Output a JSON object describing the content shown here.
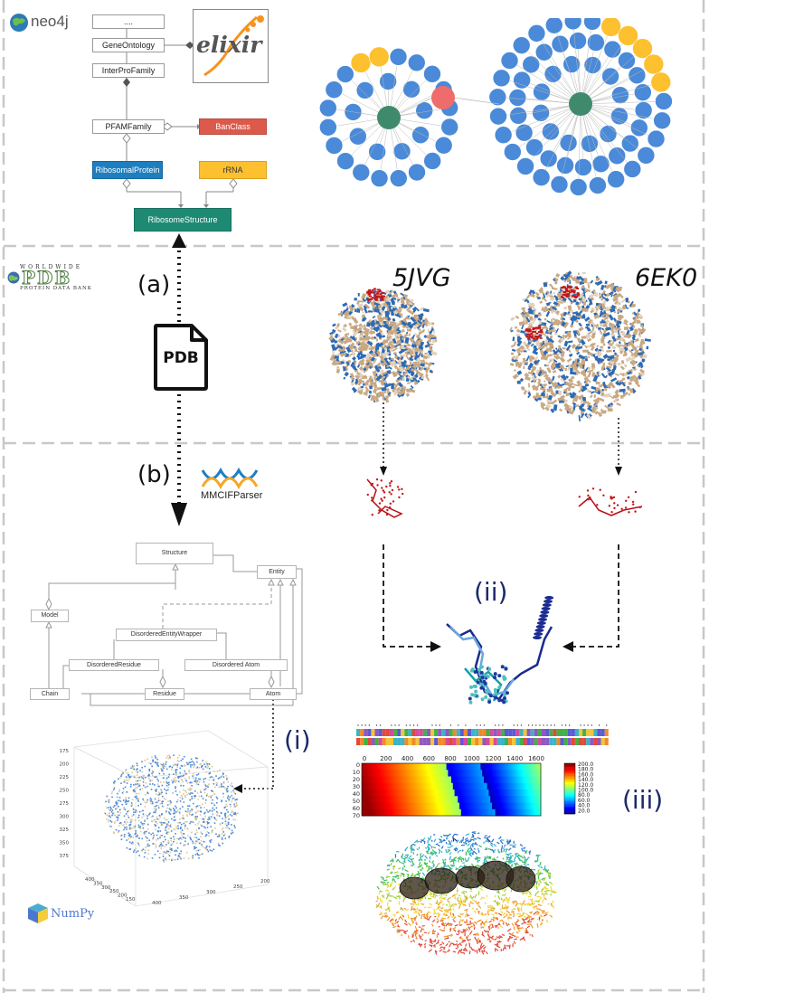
{
  "logos": {
    "neo4j": "neo4j",
    "elixir": "elixir",
    "wwpdb_top": "WORLDWIDE",
    "wwpdb_main": "PDB",
    "wwpdb_bottom": "PROTEIN DATA BANK",
    "mmcif": "MMCIFParser",
    "numpy": "NumPy"
  },
  "schema": {
    "dots": "....",
    "gene_ontology": "GeneOntology",
    "interpro": "InterProFamily",
    "pfam": "PFAMFamily",
    "banclass": "BanClass",
    "ribosomal_protein": "RibosomalProtein",
    "rrna": "rRNA",
    "ribosome_structure": "RibosomeStructure"
  },
  "labels": {
    "a": "(a)",
    "b": "(b)",
    "pdb_file": "PDB",
    "structure_1": "5JVG",
    "structure_2": "6EK0",
    "i": "(i)",
    "ii": "(ii)",
    "iii": "(iii)"
  },
  "uml": {
    "structure": "Structure",
    "entity": "Entity",
    "model": "Model",
    "disordered_entity_wrapper": "DisorderedEntityWrapper",
    "disordered_residue": "DisorderedResidue",
    "disordered_atom": "Disordered Atom",
    "chain": "Chain",
    "residue": "Residue",
    "atom": "Atom"
  },
  "heatmap": {
    "x_ticks": [
      "0",
      "200",
      "400",
      "600",
      "800",
      "1000",
      "1200",
      "1400",
      "1600"
    ],
    "y_ticks": [
      "0",
      "10",
      "20",
      "30",
      "40",
      "50",
      "60",
      "70"
    ],
    "colorbar_ticks": [
      "200.0",
      "180.0",
      "160.0",
      "140.0",
      "120.0",
      "100.0",
      "80.0",
      "60.0",
      "40.0",
      "20.0"
    ]
  },
  "plot3d": {
    "z_ticks": [
      "175",
      "200",
      "225",
      "250",
      "275",
      "300",
      "325",
      "350",
      "375"
    ],
    "x_ticks": [
      "400",
      "350",
      "300",
      "250",
      "200",
      "150"
    ],
    "y_ticks": [
      "400",
      "350",
      "300",
      "250",
      "200"
    ]
  },
  "colors": {
    "banclass": "#dc5a4b",
    "ribosomal_protein": "#1d7fc0",
    "rrna": "#fdc02f",
    "ribosome_structure": "#1e8a74",
    "node_blue": "#4a8ad8",
    "node_center": "#3f8a6d",
    "node_red": "#ef6c6c",
    "roman": "#1b2a6b"
  }
}
